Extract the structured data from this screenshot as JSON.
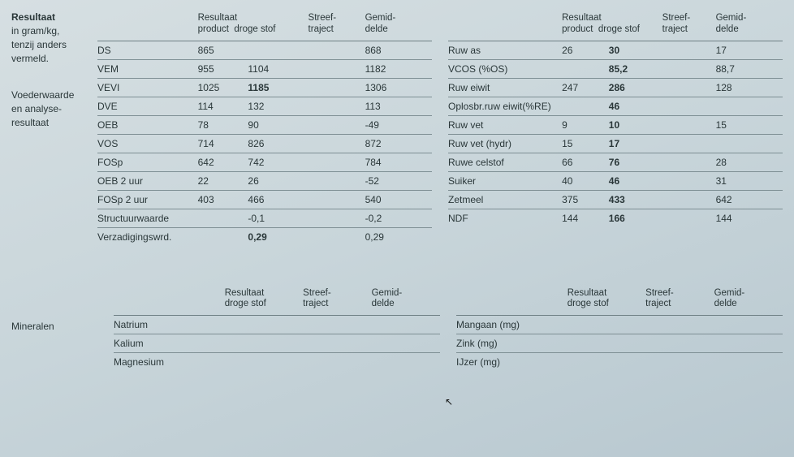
{
  "sideLabels": {
    "resultTitle": "Resultaat",
    "resultSub1": "in gram/kg,",
    "resultSub2": "tenzij anders",
    "resultSub3": "vermeld.",
    "feed1": "Voederwaarde",
    "feed2": "en analyse-",
    "feed3": "resultaat",
    "minerals": "Mineralen"
  },
  "headers": {
    "result": "Resultaat",
    "product": "product",
    "drogestof": "droge stof",
    "streef1": "Streef-",
    "streef2": "traject",
    "gemid1": "Gemid-",
    "gemid2": "delde",
    "resultDS": "Resultaat",
    "resultDS2": "droge stof"
  },
  "leftRows": [
    {
      "param": "DS",
      "prod": "865",
      "ds": "",
      "st": "",
      "gem": "868",
      "dsBold": false
    },
    {
      "param": "VEM",
      "prod": "955",
      "ds": "1104",
      "st": "",
      "gem": "1182",
      "dsBold": false
    },
    {
      "param": "VEVI",
      "prod": "1025",
      "ds": "1185",
      "st": "",
      "gem": "1306",
      "dsBold": true
    },
    {
      "param": "DVE",
      "prod": "114",
      "ds": "132",
      "st": "",
      "gem": "113",
      "dsBold": false
    },
    {
      "param": "OEB",
      "prod": "78",
      "ds": "90",
      "st": "",
      "gem": "-49",
      "dsBold": false
    },
    {
      "param": "VOS",
      "prod": "714",
      "ds": "826",
      "st": "",
      "gem": "872",
      "dsBold": false
    },
    {
      "param": "FOSp",
      "prod": "642",
      "ds": "742",
      "st": "",
      "gem": "784",
      "dsBold": false
    },
    {
      "param": "OEB 2 uur",
      "prod": "22",
      "ds": "26",
      "st": "",
      "gem": "-52",
      "dsBold": false
    },
    {
      "param": "FOSp 2 uur",
      "prod": "403",
      "ds": "466",
      "st": "",
      "gem": "540",
      "dsBold": false
    },
    {
      "param": "Structuurwaarde",
      "prod": "",
      "ds": "-0,1",
      "st": "",
      "gem": "-0,2",
      "dsBold": false
    },
    {
      "param": "Verzadigingswrd.",
      "prod": "",
      "ds": "0,29",
      "st": "",
      "gem": "0,29",
      "dsBold": true
    }
  ],
  "rightRows": [
    {
      "param": "Ruw as",
      "prod": "26",
      "ds": "30",
      "st": "",
      "gem": "17",
      "dsBold": true
    },
    {
      "param": "VCOS (%OS)",
      "prod": "",
      "ds": "85,2",
      "st": "",
      "gem": "88,7",
      "dsBold": true
    },
    {
      "param": "Ruw eiwit",
      "prod": "247",
      "ds": "286",
      "st": "",
      "gem": "128",
      "dsBold": true
    },
    {
      "param": "Oplosbr.ruw eiwit(%RE)",
      "prod": "",
      "ds": "46",
      "st": "",
      "gem": "",
      "dsBold": true,
      "span": true
    },
    {
      "param": "Ruw vet",
      "prod": "9",
      "ds": "10",
      "st": "",
      "gem": "15",
      "dsBold": true
    },
    {
      "param": "Ruw vet (hydr)",
      "prod": "15",
      "ds": "17",
      "st": "",
      "gem": "",
      "dsBold": true
    },
    {
      "param": "Ruwe celstof",
      "prod": "66",
      "ds": "76",
      "st": "",
      "gem": "28",
      "dsBold": true
    },
    {
      "param": "Suiker",
      "prod": "40",
      "ds": "46",
      "st": "",
      "gem": "31",
      "dsBold": true
    },
    {
      "param": "Zetmeel",
      "prod": "375",
      "ds": "433",
      "st": "",
      "gem": "642",
      "dsBold": true
    },
    {
      "param": "NDF",
      "prod": "144",
      "ds": "166",
      "st": "",
      "gem": "144",
      "dsBold": true
    }
  ],
  "minLeft": [
    "Natrium",
    "Kalium",
    "Magnesium"
  ],
  "minRight": [
    "Mangaan (mg)",
    "Zink (mg)",
    "IJzer (mg)"
  ]
}
